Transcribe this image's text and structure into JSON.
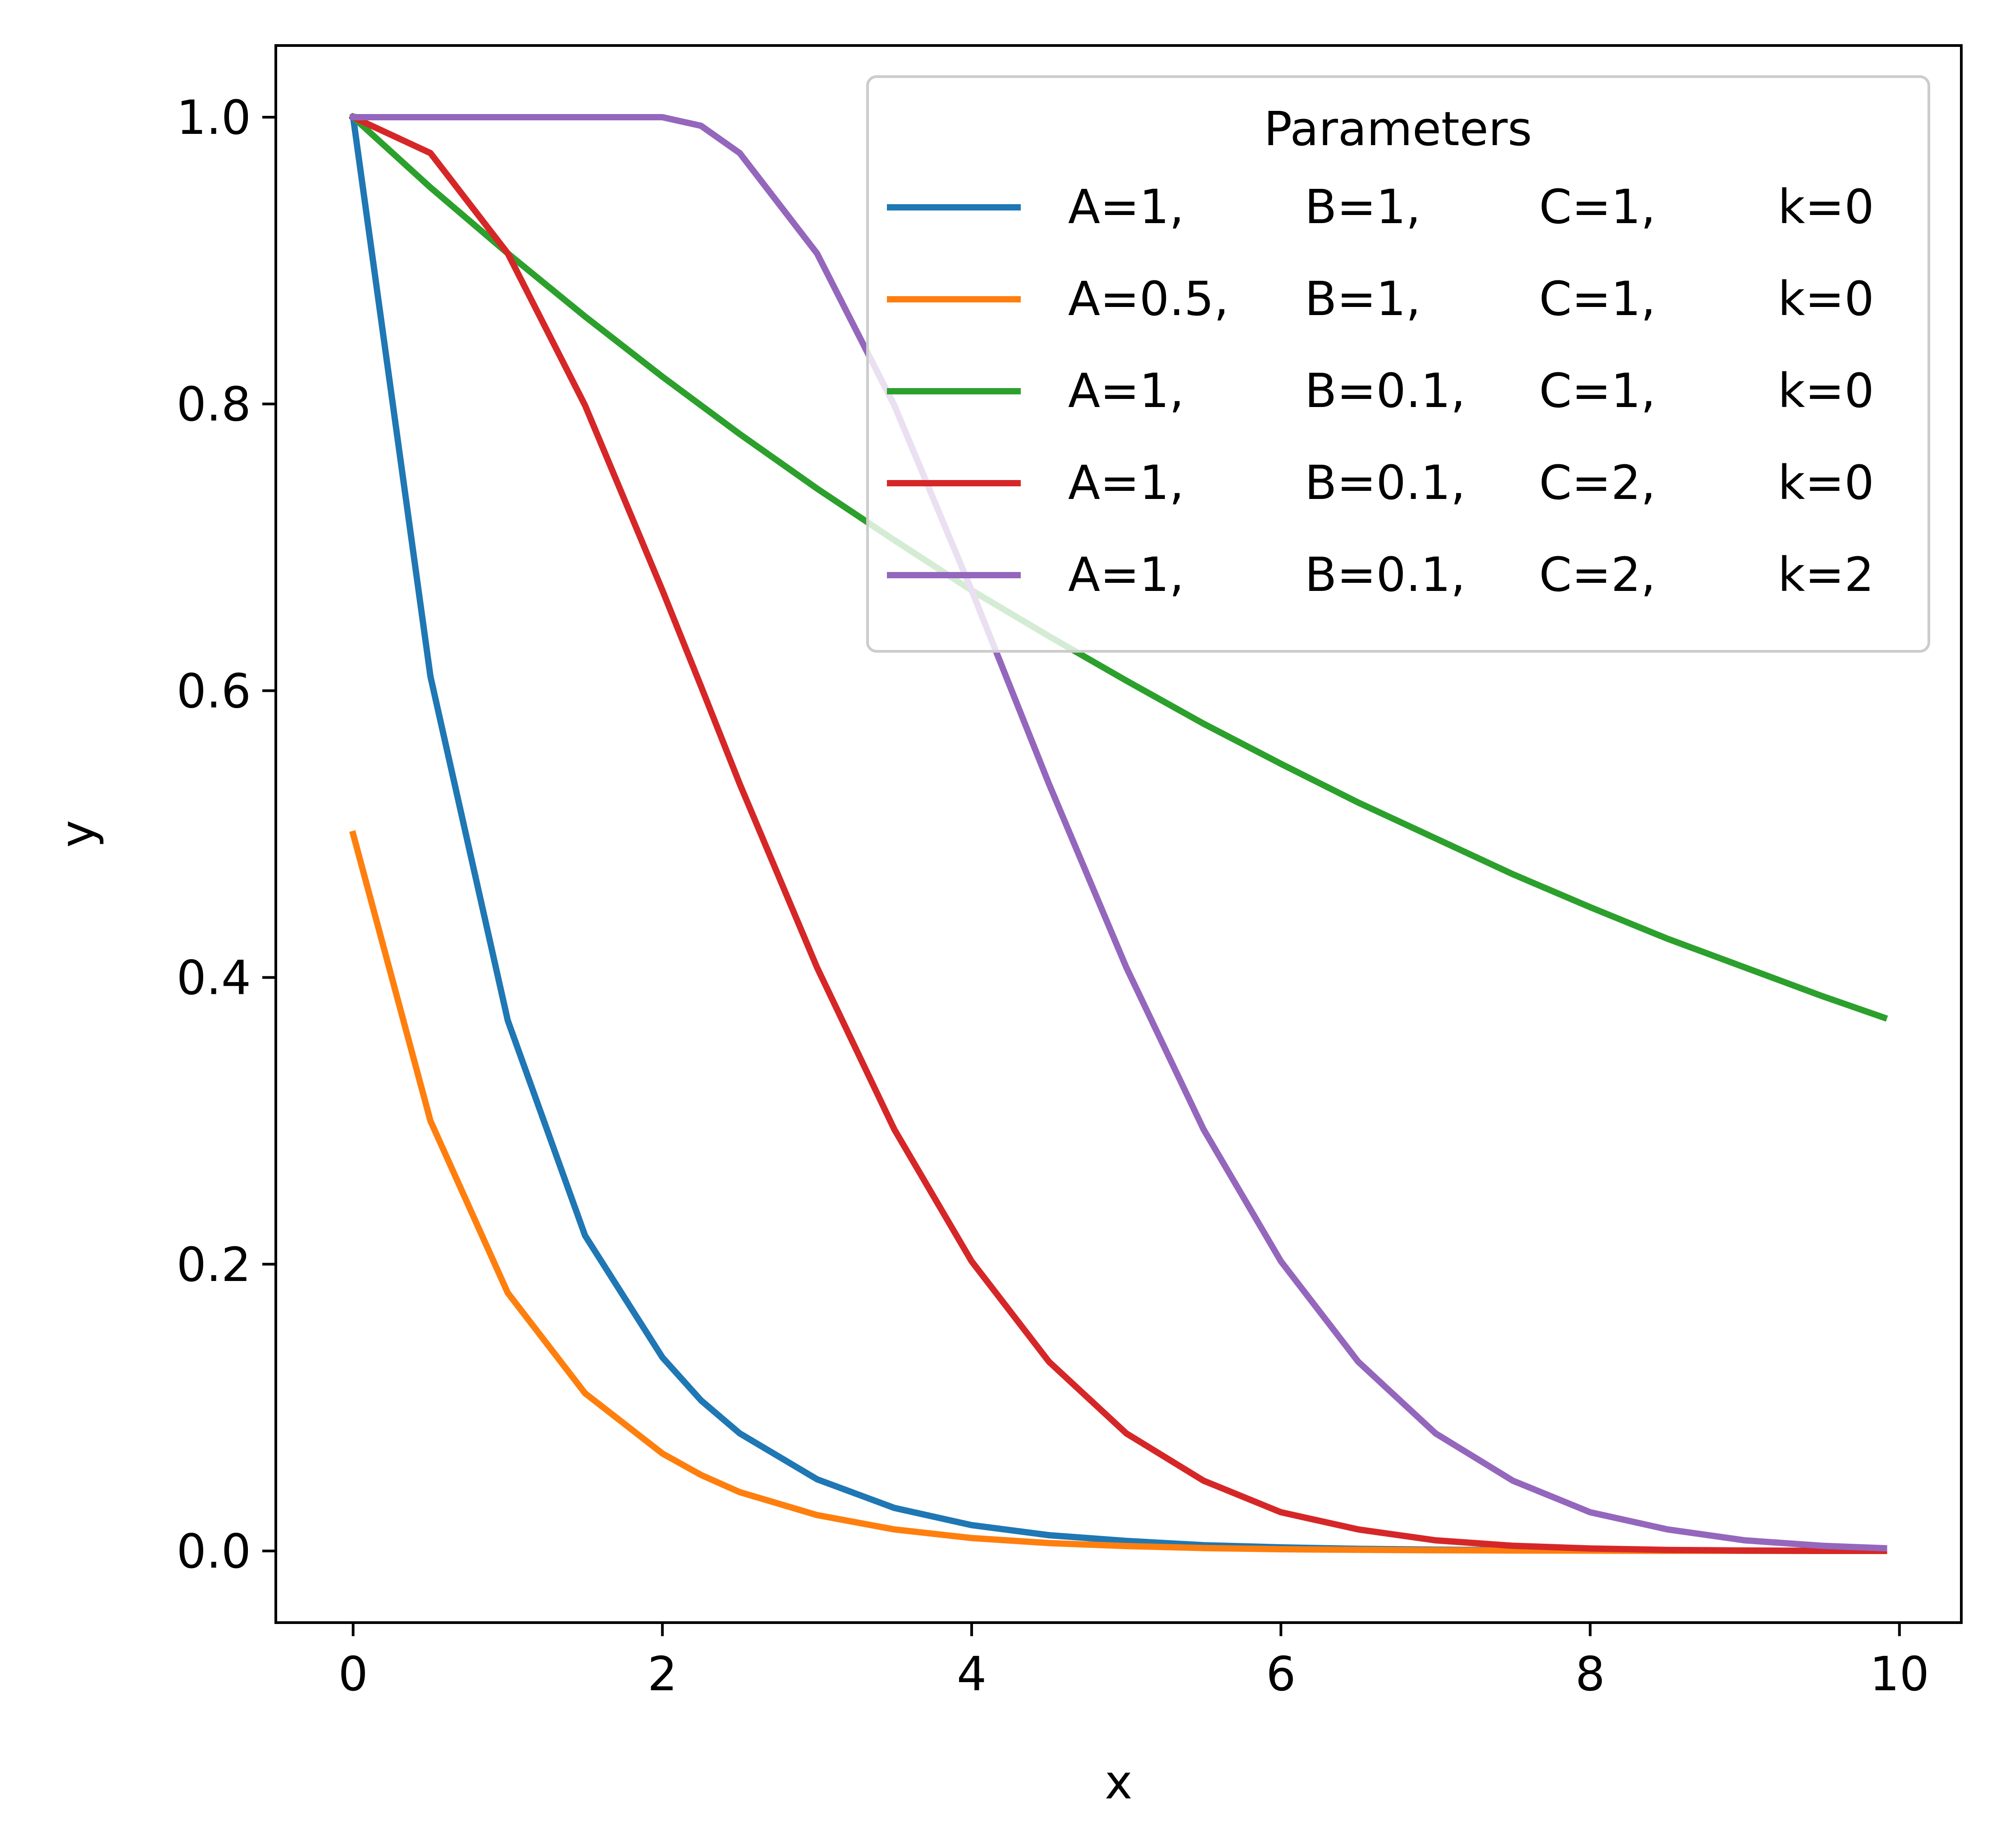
{
  "chart_data": {
    "type": "line",
    "title": "",
    "xlabel": "x",
    "ylabel": "y",
    "xlim": [
      -0.5,
      10.4
    ],
    "ylim": [
      -0.05,
      1.05
    ],
    "xticks": [
      0,
      2,
      4,
      6,
      8,
      10
    ],
    "xtick_labels": [
      "0",
      "2",
      "4",
      "6",
      "8",
      "10"
    ],
    "yticks": [
      0.0,
      0.2,
      0.4,
      0.6,
      0.8,
      1.0
    ],
    "ytick_labels": [
      "0.0",
      "0.2",
      "0.4",
      "0.6",
      "0.8",
      "1.0"
    ],
    "grid": false,
    "legend": {
      "title": "Parameters",
      "placement": "top-right",
      "entries": [
        {
          "A": "A=1,",
          "B": "B=1,",
          "C": "C=1,",
          "k": "k=0"
        },
        {
          "A": "A=0.5,",
          "B": "B=1,",
          "C": "C=1,",
          "k": "k=0"
        },
        {
          "A": "A=1,",
          "B": "B=0.1,",
          "C": "C=1,",
          "k": "k=0"
        },
        {
          "A": "A=1,",
          "B": "B=0.1,",
          "C": "C=2,",
          "k": "k=0"
        },
        {
          "A": "A=1,",
          "B": "B=0.1,",
          "C": "C=2,",
          "k": "k=2"
        }
      ]
    },
    "x": [
      0,
      0.5,
      1,
      1.5,
      2,
      2.25,
      2.5,
      3,
      3.5,
      4,
      4.5,
      5,
      5.5,
      6,
      6.5,
      7,
      7.5,
      8,
      8.5,
      9,
      9.5,
      9.9
    ],
    "series": [
      {
        "name": "A=1, B=1, C=1, k=0",
        "color": "#1f77b4",
        "values": [
          1.0,
          0.61,
          0.37,
          0.22,
          0.135,
          0.105,
          0.082,
          0.05,
          0.03,
          0.018,
          0.011,
          0.007,
          0.004,
          0.0025,
          0.0015,
          0.0009,
          0.0006,
          0.0003,
          0.0002,
          0.0001,
          0.0001,
          0.0001
        ]
      },
      {
        "name": "A=0.5, B=1, C=1, k=0",
        "color": "#ff7f0e",
        "values": [
          0.5,
          0.3,
          0.18,
          0.11,
          0.068,
          0.053,
          0.041,
          0.025,
          0.015,
          0.009,
          0.0055,
          0.0034,
          0.002,
          0.0012,
          0.0008,
          0.0005,
          0.0003,
          0.0002,
          0.0001,
          0.0001,
          0.0,
          0.0
        ]
      },
      {
        "name": "A=1, B=0.1, C=1, k=0",
        "color": "#2ca02c",
        "values": [
          1.0,
          0.951,
          0.905,
          0.861,
          0.819,
          0.799,
          0.779,
          0.741,
          0.705,
          0.67,
          0.638,
          0.607,
          0.577,
          0.549,
          0.522,
          0.497,
          0.472,
          0.449,
          0.427,
          0.407,
          0.387,
          0.372
        ]
      },
      {
        "name": "A=1, B=0.1, C=2, k=0",
        "color": "#d62728",
        "values": [
          1.0,
          0.975,
          0.905,
          0.799,
          0.67,
          0.603,
          0.535,
          0.407,
          0.294,
          0.202,
          0.132,
          0.082,
          0.049,
          0.027,
          0.015,
          0.0074,
          0.0036,
          0.0017,
          0.0007,
          0.0003,
          0.0001,
          0.0001
        ]
      },
      {
        "name": "A=1, B=0.1, C=2, k=2",
        "color": "#9467bd",
        "values": [
          1.0,
          1.0,
          1.0,
          1.0,
          1.0,
          0.994,
          0.975,
          0.905,
          0.799,
          0.67,
          0.535,
          0.407,
          0.294,
          0.202,
          0.132,
          0.082,
          0.049,
          0.027,
          0.015,
          0.0074,
          0.0036,
          0.0019
        ]
      }
    ]
  }
}
